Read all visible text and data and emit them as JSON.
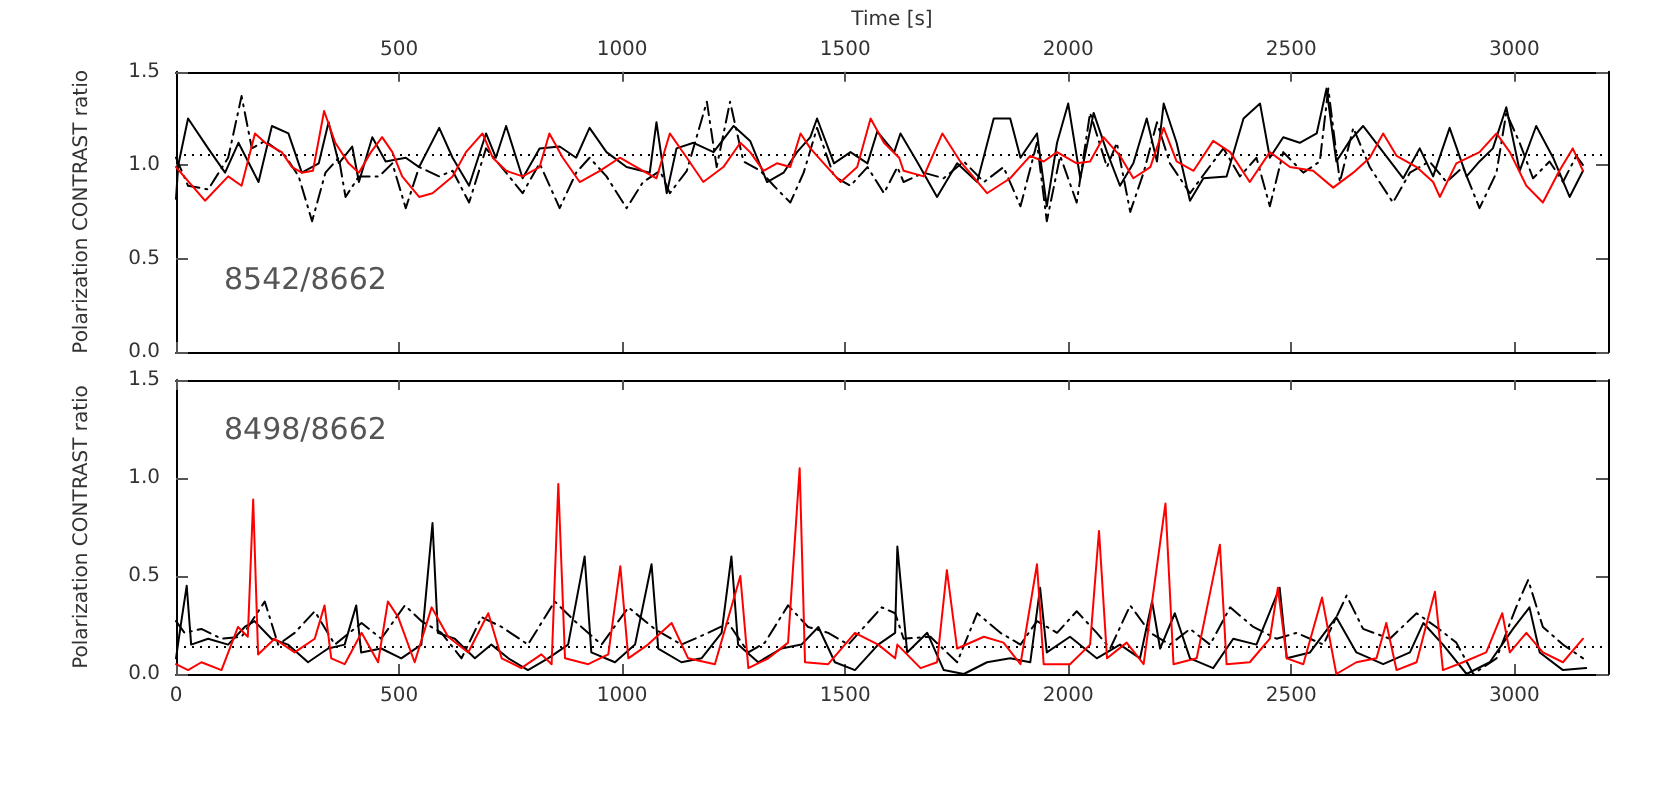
{
  "chart_data": [
    {
      "type": "line",
      "ylabel": "Polarization CONTRAST ratio",
      "xlim": [
        0,
        3210
      ],
      "xticks": [
        0,
        500,
        1000,
        1500,
        2000,
        2500,
        3000
      ],
      "tick_labels": "y",
      "x2label": "Time [s]",
      "x2lim": [
        0,
        3210
      ],
      "x2ticks": [
        500,
        1000,
        1500,
        2000,
        2500,
        3000
      ],
      "ylim": [
        0,
        1.5
      ],
      "yticks": [
        {
          "value": 0,
          "label": "0.0"
        },
        {
          "value": 0.5,
          "label": "0.5"
        },
        {
          "value": 1,
          "label": "1.0"
        },
        {
          "value": 1.5,
          "label": "1.5"
        }
      ],
      "marker": "none",
      "annotations": [
        "8542/8662"
      ],
      "ref_lines": [
        {
          "axis": "y",
          "value": 1.06,
          "color": "#000000",
          "line_style": "dotted"
        }
      ],
      "series": [
        {
          "color": "#000000",
          "line_style": "solid",
          "x": [
            0,
            5,
            27,
            72,
            110,
            140,
            185,
            215,
            252,
            282,
            320,
            342,
            365,
            395,
            410,
            440,
            470,
            515,
            545,
            590,
            620,
            657,
            695,
            717,
            740,
            777,
            815,
            860,
            897,
            927,
            965,
            1010,
            1062,
            1077,
            1100,
            1122,
            1160,
            1205,
            1250,
            1287,
            1325,
            1362,
            1392,
            1422,
            1437,
            1475,
            1512,
            1550,
            1572,
            1610,
            1624,
            1661,
            1706,
            1751,
            1796,
            1833,
            1870,
            1893,
            1930,
            1952,
            1975,
            2000,
            2027,
            2057,
            2087,
            2116,
            2146,
            2176,
            2199,
            2214,
            2243,
            2273,
            2303,
            2355,
            2393,
            2430,
            2452,
            2482,
            2519,
            2557,
            2579,
            2601,
            2631,
            2661,
            2706,
            2751,
            2788,
            2818,
            2855,
            2893,
            2922,
            2952,
            2982,
            3012,
            3049,
            3087,
            3124,
            3154
          ],
          "values": [
            0.82,
            1.0,
            1.25,
            1.09,
            0.96,
            1.12,
            0.91,
            1.21,
            1.17,
            0.96,
            1.01,
            1.23,
            1.01,
            1.1,
            0.91,
            1.15,
            1.02,
            1.04,
            0.99,
            1.2,
            1.04,
            0.89,
            1.17,
            1.04,
            1.21,
            0.93,
            1.09,
            1.1,
            1.04,
            1.2,
            1.07,
            0.99,
            0.96,
            1.23,
            0.85,
            1.09,
            1.12,
            1.07,
            1.21,
            1.13,
            0.91,
            0.96,
            1.07,
            1.15,
            1.25,
            1.01,
            1.07,
            1.01,
            1.18,
            1.07,
            1.17,
            1.02,
            0.83,
            1.01,
            0.91,
            1.25,
            1.25,
            1.04,
            1.17,
            0.78,
            1.12,
            1.33,
            0.93,
            1.28,
            1.07,
            0.89,
            1.01,
            1.25,
            1.02,
            1.33,
            1.12,
            0.81,
            0.93,
            0.94,
            1.25,
            1.33,
            1.04,
            1.15,
            1.12,
            1.17,
            1.41,
            1.02,
            1.13,
            1.21,
            1.07,
            0.93,
            1.09,
            0.94,
            1.2,
            0.94,
            1.02,
            1.09,
            1.31,
            0.97,
            1.21,
            1.04,
            0.83,
            0.97
          ]
        },
        {
          "color": "#000000",
          "line_style": "dashed",
          "x": [
            0,
            27,
            72,
            117,
            147,
            170,
            200,
            245,
            275,
            305,
            335,
            365,
            380,
            410,
            455,
            485,
            515,
            545,
            590,
            620,
            657,
            695,
            740,
            777,
            815,
            860,
            897,
            927,
            965,
            1010,
            1047,
            1085,
            1107,
            1145,
            1190,
            1212,
            1242,
            1272,
            1310,
            1340,
            1377,
            1407,
            1437,
            1475,
            1512,
            1550,
            1587,
            1617,
            1631,
            1676,
            1721,
            1766,
            1811,
            1855,
            1893,
            1930,
            1952,
            1982,
            2019,
            2049,
            2087,
            2109,
            2139,
            2169,
            2199,
            2228,
            2273,
            2310,
            2348,
            2385,
            2422,
            2452,
            2482,
            2527,
            2564,
            2583,
            2609,
            2639,
            2676,
            2728,
            2766,
            2810,
            2848,
            2885,
            2922,
            2960,
            2982,
            3012,
            3042,
            3079,
            3109,
            3139,
            3157
          ],
          "values": [
            1.04,
            0.89,
            0.87,
            1.04,
            1.37,
            1.09,
            1.13,
            1.05,
            0.94,
            0.7,
            0.96,
            1.04,
            0.83,
            0.94,
            0.94,
            1.01,
            0.77,
            0.99,
            0.94,
            0.97,
            0.8,
            1.09,
            0.96,
            0.85,
            1.01,
            0.77,
            0.96,
            1.04,
            0.94,
            0.77,
            0.91,
            0.97,
            0.85,
            0.97,
            1.34,
            0.99,
            1.34,
            1.02,
            0.97,
            0.89,
            0.8,
            0.96,
            1.2,
            0.94,
            0.89,
            0.99,
            0.85,
            0.99,
            0.91,
            0.96,
            0.93,
            1.02,
            0.91,
            0.99,
            0.78,
            1.12,
            0.7,
            1.05,
            0.8,
            1.28,
            0.99,
            1.12,
            0.75,
            0.96,
            1.23,
            1.01,
            0.85,
            0.97,
            1.09,
            0.94,
            1.04,
            0.78,
            1.07,
            0.96,
            1.02,
            1.41,
            0.91,
            1.2,
            0.99,
            0.8,
            0.96,
            1.02,
            0.91,
            0.99,
            0.77,
            0.96,
            1.28,
            1.12,
            0.93,
            1.02,
            0.91,
            1.05,
            0.99
          ]
        },
        {
          "color": "#ff0000",
          "line_style": "solid",
          "x": [
            0,
            65,
            117,
            147,
            177,
            200,
            237,
            260,
            282,
            307,
            332,
            357,
            387,
            410,
            437,
            462,
            485,
            507,
            545,
            575,
            620,
            650,
            687,
            710,
            740,
            777,
            815,
            837,
            867,
            905,
            950,
            995,
            1032,
            1077,
            1107,
            1145,
            1182,
            1227,
            1265,
            1287,
            1317,
            1347,
            1377,
            1400,
            1422,
            1452,
            1490,
            1527,
            1557,
            1587,
            1621,
            1631,
            1676,
            1718,
            1758,
            1818,
            1870,
            1915,
            1945,
            1975,
            2019,
            2049,
            2079,
            2116,
            2146,
            2184,
            2214,
            2243,
            2281,
            2325,
            2363,
            2407,
            2452,
            2497,
            2549,
            2594,
            2639,
            2676,
            2706,
            2736,
            2781,
            2818,
            2833,
            2870,
            2922,
            2960,
            2990,
            3027,
            3064,
            3101,
            3131,
            3154
          ],
          "values": [
            0.99,
            0.81,
            0.94,
            0.89,
            1.17,
            1.12,
            1.07,
            0.99,
            0.96,
            0.97,
            1.29,
            1.12,
            1.01,
            0.96,
            1.07,
            1.15,
            1.07,
            0.94,
            0.83,
            0.85,
            0.94,
            1.07,
            1.17,
            1.04,
            0.97,
            0.94,
            0.99,
            1.17,
            1.04,
            0.91,
            0.97,
            1.04,
            0.99,
            0.93,
            1.17,
            1.04,
            0.91,
            0.99,
            1.12,
            1.07,
            0.97,
            1.01,
            0.99,
            1.17,
            1.09,
            1.01,
            0.91,
            0.99,
            1.25,
            1.12,
            1.04,
            0.97,
            0.94,
            1.17,
            1.02,
            0.85,
            0.93,
            1.05,
            1.02,
            1.07,
            1.01,
            1.02,
            1.15,
            1.05,
            0.93,
            0.99,
            1.2,
            1.02,
            0.97,
            1.13,
            1.07,
            0.91,
            1.07,
            0.99,
            0.97,
            0.88,
            0.96,
            1.04,
            1.17,
            1.05,
            0.99,
            0.91,
            0.83,
            1.01,
            1.07,
            1.17,
            1.07,
            0.89,
            0.8,
            0.97,
            1.09,
            0.97
          ]
        }
      ]
    },
    {
      "type": "line",
      "ylabel": "Polarization CONTRAST ratio",
      "xlim": [
        0,
        3210
      ],
      "xticks": [
        0,
        500,
        1000,
        1500,
        2000,
        2500,
        3000
      ],
      "ylim": [
        0,
        1.5
      ],
      "yticks": [
        {
          "value": 0,
          "label": "0.0"
        },
        {
          "value": 0.5,
          "label": "0.5"
        },
        {
          "value": 1,
          "label": "1.0"
        },
        {
          "value": 1.5,
          "label": "1.5"
        }
      ],
      "marker": "none",
      "annotations": [
        "8498/8662"
      ],
      "ref_lines": [
        {
          "axis": "y",
          "value": 0.14,
          "color": "#000000",
          "line_style": "dotted"
        }
      ],
      "series": [
        {
          "color": "#000000",
          "line_style": "solid",
          "x": [
            0,
            12,
            24,
            34,
            72,
            117,
            154,
            176,
            214,
            251,
            296,
            341,
            378,
            404,
            415,
            460,
            505,
            550,
            575,
            587,
            625,
            670,
            707,
            745,
            789,
            834,
            879,
            916,
            931,
            984,
            1029,
            1066,
            1081,
            1133,
            1178,
            1223,
            1245,
            1260,
            1305,
            1357,
            1402,
            1440,
            1477,
            1522,
            1574,
            1612,
            1617,
            1639,
            1684,
            1721,
            1766,
            1818,
            1870,
            1915,
            1937,
            1952,
            2004,
            2064,
            2116,
            2161,
            2188,
            2206,
            2239,
            2273,
            2325,
            2370,
            2422,
            2474,
            2490,
            2542,
            2601,
            2646,
            2706,
            2766,
            2796,
            2840,
            2893,
            2945,
            2997,
            3034,
            3057,
            3109,
            3161
          ],
          "values": [
            0.08,
            0.27,
            0.45,
            0.15,
            0.18,
            0.15,
            0.24,
            0.27,
            0.18,
            0.15,
            0.06,
            0.13,
            0.15,
            0.35,
            0.11,
            0.13,
            0.08,
            0.15,
            0.77,
            0.21,
            0.18,
            0.08,
            0.15,
            0.08,
            0.02,
            0.08,
            0.15,
            0.6,
            0.11,
            0.06,
            0.15,
            0.56,
            0.13,
            0.06,
            0.08,
            0.21,
            0.6,
            0.15,
            0.06,
            0.13,
            0.15,
            0.24,
            0.06,
            0.02,
            0.15,
            0.21,
            0.65,
            0.11,
            0.21,
            0.02,
            0.0,
            0.06,
            0.08,
            0.06,
            0.44,
            0.11,
            0.19,
            0.08,
            0.15,
            0.08,
            0.37,
            0.13,
            0.31,
            0.08,
            0.03,
            0.18,
            0.15,
            0.44,
            0.08,
            0.11,
            0.29,
            0.11,
            0.05,
            0.11,
            0.26,
            0.15,
            0.0,
            0.06,
            0.23,
            0.34,
            0.11,
            0.02,
            0.03
          ]
        },
        {
          "color": "#000000",
          "line_style": "dashed",
          "x": [
            0,
            19,
            57,
            102,
            147,
            199,
            229,
            266,
            311,
            356,
            416,
            460,
            513,
            550,
            595,
            640,
            685,
            730,
            789,
            849,
            894,
            954,
            1014,
            1073,
            1133,
            1193,
            1238,
            1283,
            1320,
            1372,
            1417,
            1462,
            1507,
            1582,
            1612,
            1631,
            1691,
            1751,
            1796,
            1848,
            1893,
            1930,
            1975,
            2019,
            2064,
            2094,
            2139,
            2184,
            2228,
            2273,
            2318,
            2363,
            2415,
            2467,
            2512,
            2572,
            2624,
            2661,
            2721,
            2781,
            2825,
            2870,
            2908,
            2960,
            3004,
            3031,
            3064,
            3109,
            3154
          ],
          "values": [
            0.27,
            0.21,
            0.23,
            0.18,
            0.19,
            0.37,
            0.15,
            0.21,
            0.32,
            0.15,
            0.26,
            0.18,
            0.35,
            0.27,
            0.21,
            0.08,
            0.29,
            0.24,
            0.15,
            0.37,
            0.27,
            0.15,
            0.34,
            0.23,
            0.15,
            0.21,
            0.26,
            0.11,
            0.16,
            0.35,
            0.24,
            0.21,
            0.15,
            0.34,
            0.31,
            0.18,
            0.19,
            0.06,
            0.31,
            0.21,
            0.15,
            0.27,
            0.21,
            0.32,
            0.21,
            0.13,
            0.35,
            0.21,
            0.15,
            0.23,
            0.15,
            0.34,
            0.24,
            0.18,
            0.21,
            0.15,
            0.4,
            0.23,
            0.18,
            0.31,
            0.24,
            0.16,
            0.0,
            0.08,
            0.34,
            0.48,
            0.24,
            0.15,
            0.08
          ]
        },
        {
          "color": "#ff0000",
          "line_style": "solid",
          "x": [
            0,
            27,
            57,
            102,
            139,
            161,
            173,
            184,
            221,
            266,
            311,
            333,
            348,
            378,
            416,
            453,
            475,
            498,
            535,
            573,
            610,
            655,
            700,
            730,
            774,
            819,
            842,
            857,
            872,
            924,
            969,
            996,
            1014,
            1058,
            1111,
            1148,
            1208,
            1265,
            1283,
            1328,
            1372,
            1398,
            1410,
            1462,
            1522,
            1574,
            1612,
            1617,
            1669,
            1706,
            1728,
            1751,
            1811,
            1855,
            1893,
            1930,
            1945,
            2004,
            2049,
            2069,
            2087,
            2131,
            2169,
            2218,
            2236,
            2288,
            2340,
            2355,
            2407,
            2452,
            2470,
            2490,
            2527,
            2569,
            2601,
            2646,
            2691,
            2713,
            2736,
            2781,
            2822,
            2840,
            2885,
            2937,
            2973,
            2990,
            3027,
            3064,
            3109,
            3154
          ],
          "values": [
            0.05,
            0.02,
            0.06,
            0.02,
            0.24,
            0.19,
            0.89,
            0.1,
            0.18,
            0.11,
            0.18,
            0.35,
            0.08,
            0.05,
            0.21,
            0.06,
            0.37,
            0.29,
            0.06,
            0.34,
            0.19,
            0.11,
            0.31,
            0.08,
            0.03,
            0.1,
            0.05,
            0.97,
            0.08,
            0.05,
            0.1,
            0.55,
            0.08,
            0.15,
            0.26,
            0.08,
            0.05,
            0.5,
            0.03,
            0.08,
            0.16,
            1.05,
            0.06,
            0.05,
            0.21,
            0.15,
            0.08,
            0.15,
            0.03,
            0.06,
            0.53,
            0.13,
            0.19,
            0.16,
            0.05,
            0.56,
            0.05,
            0.05,
            0.15,
            0.73,
            0.08,
            0.16,
            0.05,
            0.87,
            0.05,
            0.08,
            0.66,
            0.05,
            0.06,
            0.18,
            0.44,
            0.08,
            0.05,
            0.39,
            0.0,
            0.06,
            0.08,
            0.26,
            0.02,
            0.06,
            0.42,
            0.02,
            0.06,
            0.11,
            0.31,
            0.11,
            0.21,
            0.11,
            0.06,
            0.18
          ]
        }
      ]
    }
  ]
}
